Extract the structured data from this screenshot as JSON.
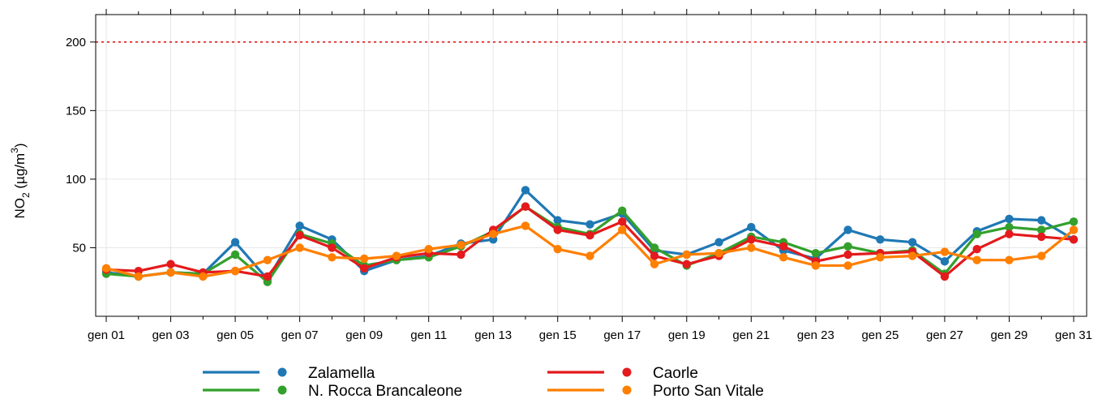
{
  "chart_data": {
    "type": "line",
    "ylabel": {
      "base": "NO",
      "sub": "2",
      "units_pre": " (µg/m",
      "sup": "3",
      "units_post": ")"
    },
    "ylim": [
      0,
      220
    ],
    "yticks": [
      50,
      100,
      150,
      200
    ],
    "xticks": [
      1,
      3,
      5,
      7,
      9,
      11,
      13,
      15,
      17,
      19,
      21,
      23,
      25,
      27,
      29,
      31
    ],
    "xtick_labels": [
      "gen 01",
      "gen 03",
      "gen 05",
      "gen 07",
      "gen 09",
      "gen 11",
      "gen 13",
      "gen 15",
      "gen 17",
      "gen 19",
      "gen 21",
      "gen 23",
      "gen 25",
      "gen 27",
      "gen 29",
      "gen 31"
    ],
    "x": [
      1,
      2,
      3,
      4,
      5,
      6,
      7,
      8,
      9,
      10,
      11,
      12,
      13,
      14,
      15,
      16,
      17,
      18,
      19,
      20,
      21,
      22,
      23,
      24,
      25,
      26,
      27,
      28,
      29,
      30,
      31
    ],
    "limit_line": {
      "value": 200,
      "color": "#e41a1c"
    },
    "grid": true,
    "legend_position": "bottom",
    "series": [
      {
        "name": "Zalamella",
        "color": "#1f78b4",
        "values": [
          32,
          29,
          32,
          31,
          54,
          27,
          66,
          56,
          33,
          41,
          44,
          53,
          56,
          92,
          70,
          67,
          75,
          48,
          45,
          54,
          65,
          48,
          42,
          63,
          56,
          54,
          40,
          62,
          71,
          70,
          56
        ]
      },
      {
        "name": "N. Rocca Brancaleone",
        "color": "#33a02c",
        "values": [
          31,
          29,
          32,
          31,
          45,
          25,
          60,
          53,
          37,
          41,
          43,
          51,
          62,
          80,
          65,
          60,
          77,
          50,
          37,
          46,
          58,
          54,
          46,
          51,
          46,
          48,
          31,
          60,
          65,
          63,
          69
        ]
      },
      {
        "name": "Caorle",
        "color": "#e41a1c",
        "values": [
          34,
          33,
          38,
          32,
          33,
          29,
          59,
          50,
          35,
          43,
          46,
          45,
          63,
          80,
          63,
          59,
          69,
          44,
          38,
          44,
          56,
          51,
          40,
          45,
          46,
          47,
          29,
          49,
          60,
          58,
          56
        ]
      },
      {
        "name": "Porto San Vitale",
        "color": "#ff7f00",
        "values": [
          35,
          29,
          32,
          29,
          33,
          41,
          50,
          43,
          42,
          44,
          49,
          52,
          60,
          66,
          49,
          44,
          63,
          38,
          45,
          46,
          50,
          43,
          37,
          37,
          43,
          44,
          47,
          41,
          41,
          44,
          63
        ]
      }
    ]
  }
}
